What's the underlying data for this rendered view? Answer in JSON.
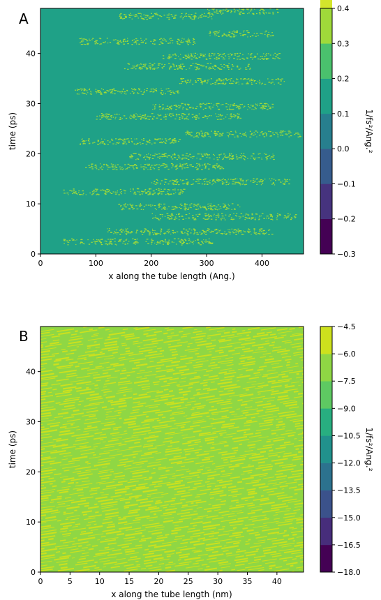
{
  "chart_data": [
    {
      "type": "heatmap",
      "panel_label": "A",
      "xlabel": "x along the tube length (Ang.)",
      "ylabel": "time (ps)",
      "xlim": [
        0,
        475
      ],
      "ylim": [
        0,
        49
      ],
      "x_ticks": [
        0,
        100,
        200,
        300,
        400
      ],
      "y_ticks": [
        0,
        10,
        20,
        30,
        40
      ],
      "colorbar": {
        "label": "1/fs²/Ang.²",
        "levels": [
          -0.3,
          -0.2,
          -0.1,
          0.0,
          0.1,
          0.2,
          0.3,
          0.4
        ],
        "tick_labels": [
          "−0.3",
          "−0.2",
          "−0.1",
          "0.0",
          "0.1",
          "0.2",
          "0.3",
          "0.4"
        ],
        "colors": [
          "#440154",
          "#46337e",
          "#365c8d",
          "#277f8e",
          "#1fa187",
          "#4ac16d",
          "#9fda3a",
          "#d3e52c"
        ]
      },
      "background_band_color": "#1fa187",
      "streak_color": "#9fda3a",
      "streak_bands": [
        {
          "t": 2.5,
          "x_from": 40,
          "x_to": 310
        },
        {
          "t": 4.5,
          "x_from": 120,
          "x_to": 420
        },
        {
          "t": 7.5,
          "x_from": 200,
          "x_to": 460
        },
        {
          "t": 9.5,
          "x_from": 140,
          "x_to": 360
        },
        {
          "t": 12.5,
          "x_from": 40,
          "x_to": 260
        },
        {
          "t": 14.5,
          "x_from": 200,
          "x_to": 450
        },
        {
          "t": 17.5,
          "x_from": 80,
          "x_to": 330
        },
        {
          "t": 19.5,
          "x_from": 160,
          "x_to": 420
        },
        {
          "t": 22.5,
          "x_from": 70,
          "x_to": 250
        },
        {
          "t": 24.0,
          "x_from": 260,
          "x_to": 470
        },
        {
          "t": 27.5,
          "x_from": 100,
          "x_to": 360
        },
        {
          "t": 29.5,
          "x_from": 200,
          "x_to": 420
        },
        {
          "t": 32.5,
          "x_from": 60,
          "x_to": 250
        },
        {
          "t": 34.5,
          "x_from": 250,
          "x_to": 440
        },
        {
          "t": 37.5,
          "x_from": 150,
          "x_to": 380
        },
        {
          "t": 39.5,
          "x_from": 220,
          "x_to": 430
        },
        {
          "t": 42.5,
          "x_from": 70,
          "x_to": 280
        },
        {
          "t": 44.0,
          "x_from": 300,
          "x_to": 420
        },
        {
          "t": 47.5,
          "x_from": 140,
          "x_to": 310
        },
        {
          "t": 48.5,
          "x_from": 300,
          "x_to": 430
        }
      ]
    },
    {
      "type": "heatmap",
      "panel_label": "B",
      "xlabel": "x along the tube length (nm)",
      "ylabel": "time (ps)",
      "xlim": [
        0,
        44.5
      ],
      "ylim": [
        0,
        49
      ],
      "x_ticks": [
        0,
        5,
        10,
        15,
        20,
        25,
        30,
        35,
        40
      ],
      "y_ticks": [
        0,
        10,
        20,
        30,
        40
      ],
      "colorbar": {
        "label": "1/fs²/Ang.²",
        "levels": [
          -18.0,
          -16.5,
          -15.0,
          -13.5,
          -12.0,
          -10.5,
          -9.0,
          -7.5,
          -6.0,
          -4.5
        ],
        "tick_labels": [
          "−18.0",
          "−16.5",
          "−15.0",
          "−13.5",
          "−12.0",
          "−10.5",
          "−9.0",
          "−7.5",
          "−6.0",
          "−4.5"
        ],
        "colors": [
          "#440154",
          "#472d7b",
          "#3b528b",
          "#2c728e",
          "#21918c",
          "#28ae80",
          "#5ec962",
          "#8fd744",
          "#cde11d"
        ]
      },
      "background_band_color": "#8fd744",
      "streak_color": "#cde11d",
      "streak_slope_ps_per_nm": 0.18
    }
  ]
}
